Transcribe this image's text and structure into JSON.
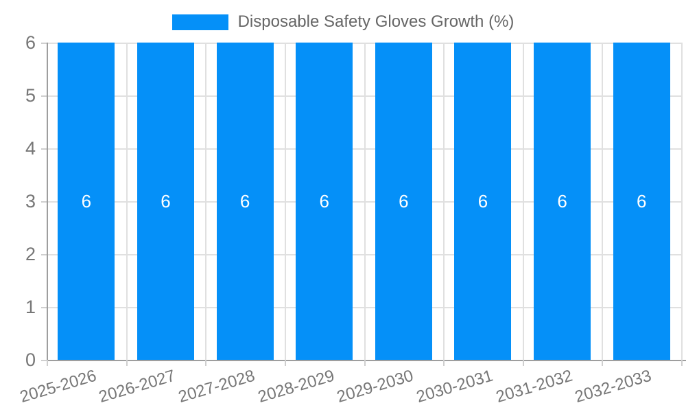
{
  "legend": {
    "series_label": "Disposable Safety Gloves Growth (%)"
  },
  "chart_data": {
    "type": "bar",
    "title": "Disposable Safety Gloves Growth (%)",
    "series_name": "Disposable Safety Gloves Growth (%)",
    "categories": [
      "2025-2026",
      "2026-2027",
      "2027-2028",
      "2028-2029",
      "2029-2030",
      "2030-2031",
      "2031-2032",
      "2032-2033"
    ],
    "values": [
      6,
      6,
      6,
      6,
      6,
      6,
      6,
      6
    ],
    "value_labels": [
      "6",
      "6",
      "6",
      "6",
      "6",
      "6",
      "6",
      "6"
    ],
    "xlabel": "",
    "ylabel": "",
    "ylim": [
      0,
      6
    ],
    "y_ticks": [
      0,
      1,
      2,
      3,
      4,
      5,
      6
    ],
    "grid": true,
    "legend_position": "top-center"
  },
  "colors": {
    "bar": "#0590f8",
    "bar_value_text": "#ffffff",
    "gridline": "#e0e0e0",
    "axis_line": "#9e9e9e",
    "tick_mark": "#cfcfcf",
    "tick_text": "#777777",
    "legend_text": "#666666"
  }
}
